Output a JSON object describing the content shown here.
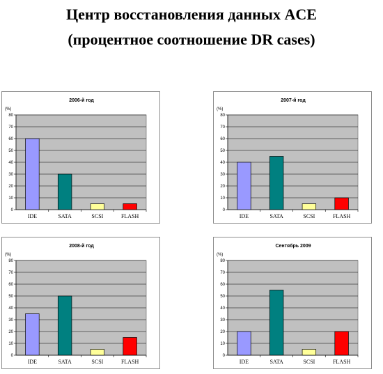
{
  "page": {
    "title_line1": "Центр восстановления данных ACE",
    "title_line2": "(процентное соотношение DR cases)"
  },
  "bar_colors": [
    "#9999ff",
    "#008080",
    "#ffff99",
    "#ff0000"
  ],
  "chart_data": [
    {
      "type": "bar",
      "title": "2006-й год",
      "ylabel": "(%)",
      "categories": [
        "IDE",
        "SATA",
        "SCSI",
        "FLASH"
      ],
      "values": [
        60,
        30,
        5,
        5
      ],
      "ylim": [
        0,
        80
      ],
      "yticks": [
        0,
        10,
        20,
        30,
        40,
        50,
        60,
        70,
        80
      ],
      "grid": true,
      "legend": "none"
    },
    {
      "type": "bar",
      "title": "2007-й год",
      "ylabel": "(%)",
      "categories": [
        "IDE",
        "SATA",
        "SCSI",
        "FLASH"
      ],
      "values": [
        40,
        45,
        5,
        10
      ],
      "ylim": [
        0,
        80
      ],
      "yticks": [
        0,
        10,
        20,
        30,
        40,
        50,
        60,
        70,
        80
      ],
      "grid": true,
      "legend": "none"
    },
    {
      "type": "bar",
      "title": "2008-й год",
      "ylabel": "(%)",
      "categories": [
        "IDE",
        "SATA",
        "SCSI",
        "FLASH"
      ],
      "values": [
        35,
        50,
        5,
        15
      ],
      "ylim": [
        0,
        80
      ],
      "yticks": [
        0,
        10,
        20,
        30,
        40,
        50,
        60,
        70,
        80
      ],
      "grid": true,
      "legend": "none"
    },
    {
      "type": "bar",
      "title": "Сентябрь 2009",
      "ylabel": "(%)",
      "categories": [
        "IDE",
        "SATA",
        "SCSI",
        "FLASH"
      ],
      "values": [
        20,
        55,
        5,
        20
      ],
      "ylim": [
        0,
        80
      ],
      "yticks": [
        0,
        10,
        20,
        30,
        40,
        50,
        60,
        70,
        80
      ],
      "grid": true,
      "legend": "none"
    }
  ]
}
